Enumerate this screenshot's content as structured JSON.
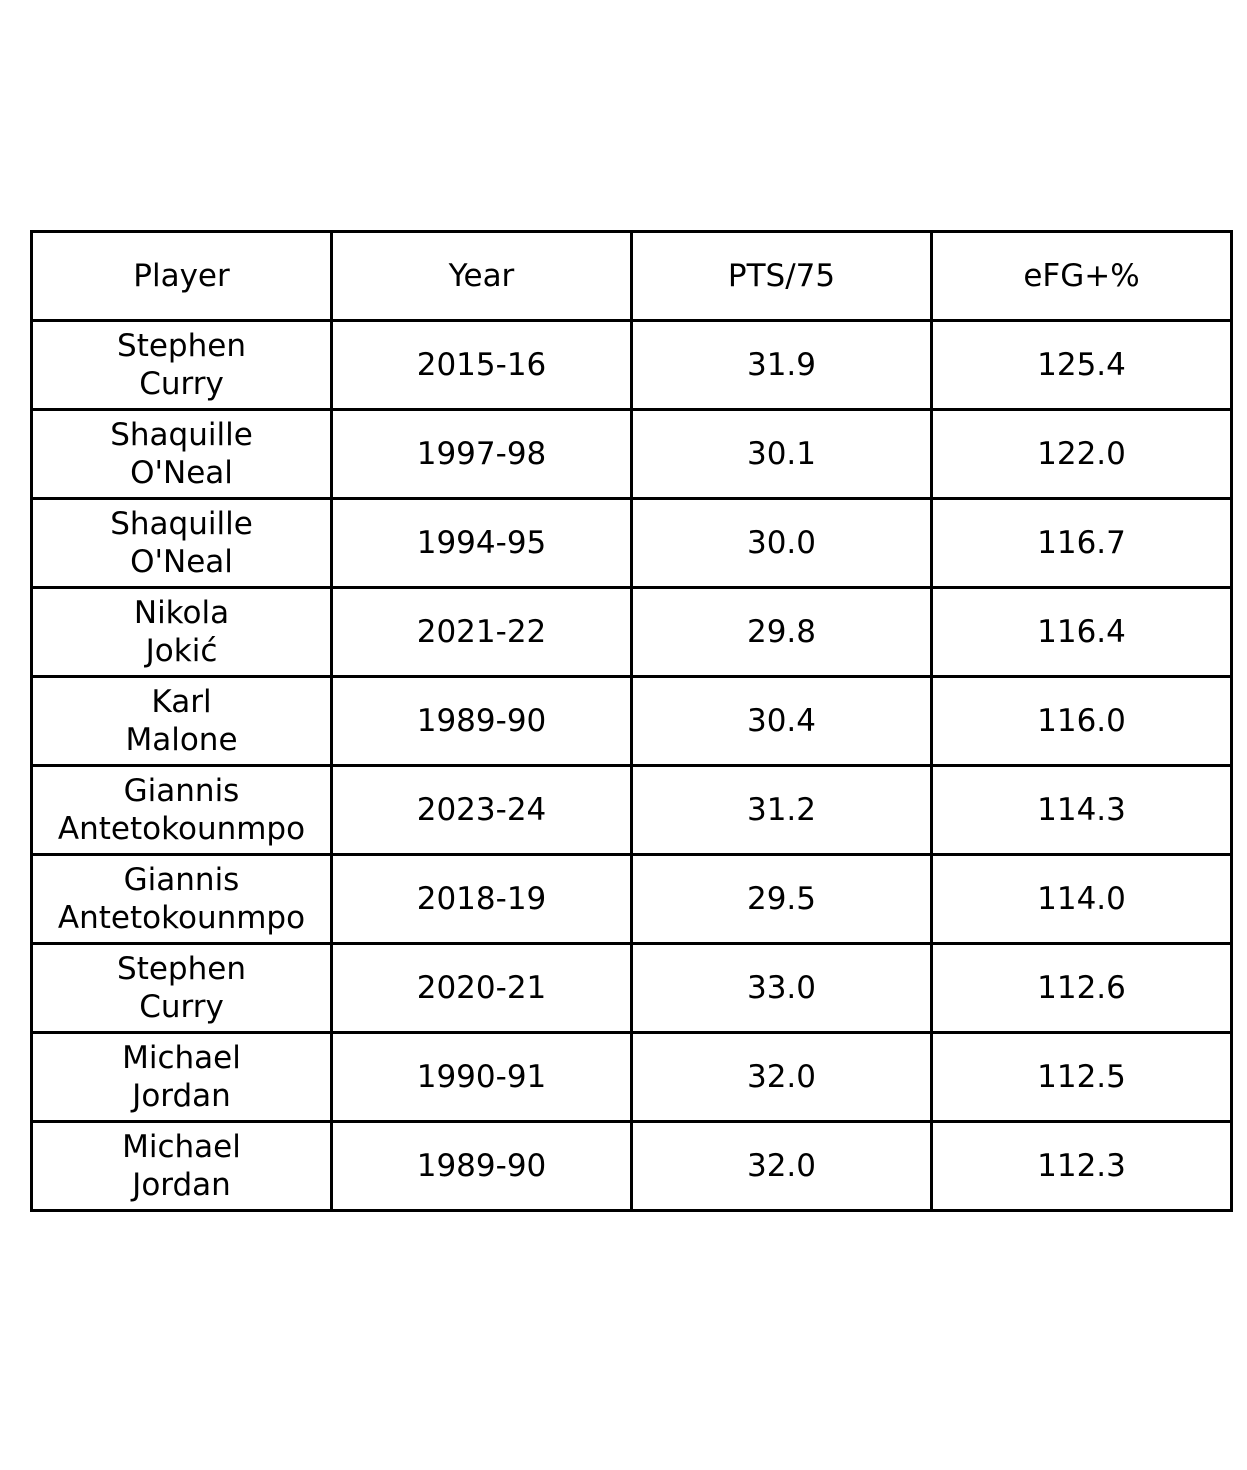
{
  "chart_data": {
    "type": "table",
    "columns": [
      "Player",
      "Year",
      "PTS/75",
      "eFG+%"
    ],
    "rows": [
      {
        "player": [
          "Stephen",
          "Curry"
        ],
        "year": "2015-16",
        "pts75": "31.9",
        "efg": "125.4"
      },
      {
        "player": [
          "Shaquille",
          "O'Neal"
        ],
        "year": "1997-98",
        "pts75": "30.1",
        "efg": "122.0"
      },
      {
        "player": [
          "Shaquille",
          "O'Neal"
        ],
        "year": "1994-95",
        "pts75": "30.0",
        "efg": "116.7"
      },
      {
        "player": [
          "Nikola",
          "Jokić"
        ],
        "year": "2021-22",
        "pts75": "29.8",
        "efg": "116.4"
      },
      {
        "player": [
          "Karl",
          "Malone"
        ],
        "year": "1989-90",
        "pts75": "30.4",
        "efg": "116.0"
      },
      {
        "player": [
          "Giannis",
          "Antetokounmpo"
        ],
        "year": "2023-24",
        "pts75": "31.2",
        "efg": "114.3"
      },
      {
        "player": [
          "Giannis",
          "Antetokounmpo"
        ],
        "year": "2018-19",
        "pts75": "29.5",
        "efg": "114.0"
      },
      {
        "player": [
          "Stephen",
          "Curry"
        ],
        "year": "2020-21",
        "pts75": "33.0",
        "efg": "112.6"
      },
      {
        "player": [
          "Michael",
          "Jordan"
        ],
        "year": "1990-91",
        "pts75": "32.0",
        "efg": "112.5"
      },
      {
        "player": [
          "Michael",
          "Jordan"
        ],
        "year": "1989-90",
        "pts75": "32.0",
        "efg": "112.3"
      }
    ]
  }
}
